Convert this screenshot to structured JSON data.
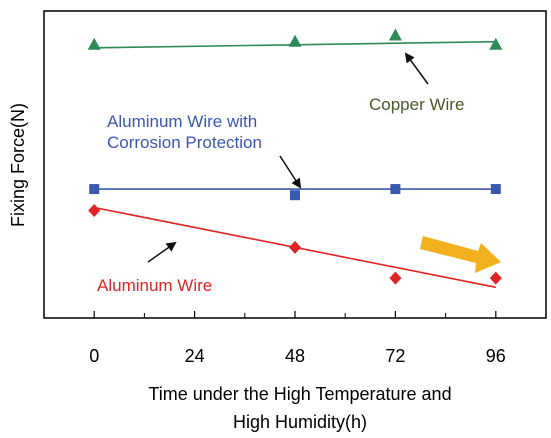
{
  "chart_data": {
    "type": "scatter",
    "x": [
      0,
      48,
      72,
      96
    ],
    "xlim": [
      -12,
      108
    ],
    "ylim": [
      0,
      100
    ],
    "xticks": [
      "0",
      "24",
      "48",
      "72",
      "96"
    ],
    "xtick_values": [
      0,
      24,
      48,
      72,
      96
    ],
    "ylabel": "Fixing Force(N)",
    "xlabel_line1": "Time under the High Temperature and",
    "xlabel_line2": "High Humidity(h)",
    "yticks_shown": false,
    "grid": false,
    "series": [
      {
        "name": "Copper Wire",
        "color": "#2e8b57",
        "marker": "triangle",
        "values": [
          89,
          90,
          92,
          89
        ],
        "trend": [
          88,
          90
        ]
      },
      {
        "name": "Aluminum Wire with Corrosion Protection",
        "label_lines": [
          "Aluminum Wire with",
          "Corrosion Protection"
        ],
        "color": "#3a58b0",
        "marker": "square",
        "values": [
          42,
          40,
          42,
          42
        ],
        "trend": [
          42,
          42
        ]
      },
      {
        "name": "Aluminum Wire",
        "color": "#e02424",
        "marker": "diamond",
        "values": [
          35,
          23,
          13,
          13
        ],
        "trend": [
          36,
          10
        ]
      }
    ],
    "annotation_arrow_color": "#f2b01e",
    "label_colors": {
      "Copper Wire": "#4a5a2a",
      "Aluminum Wire with Corrosion Protection": "#3a58b0",
      "Aluminum Wire": "#e02424"
    }
  }
}
